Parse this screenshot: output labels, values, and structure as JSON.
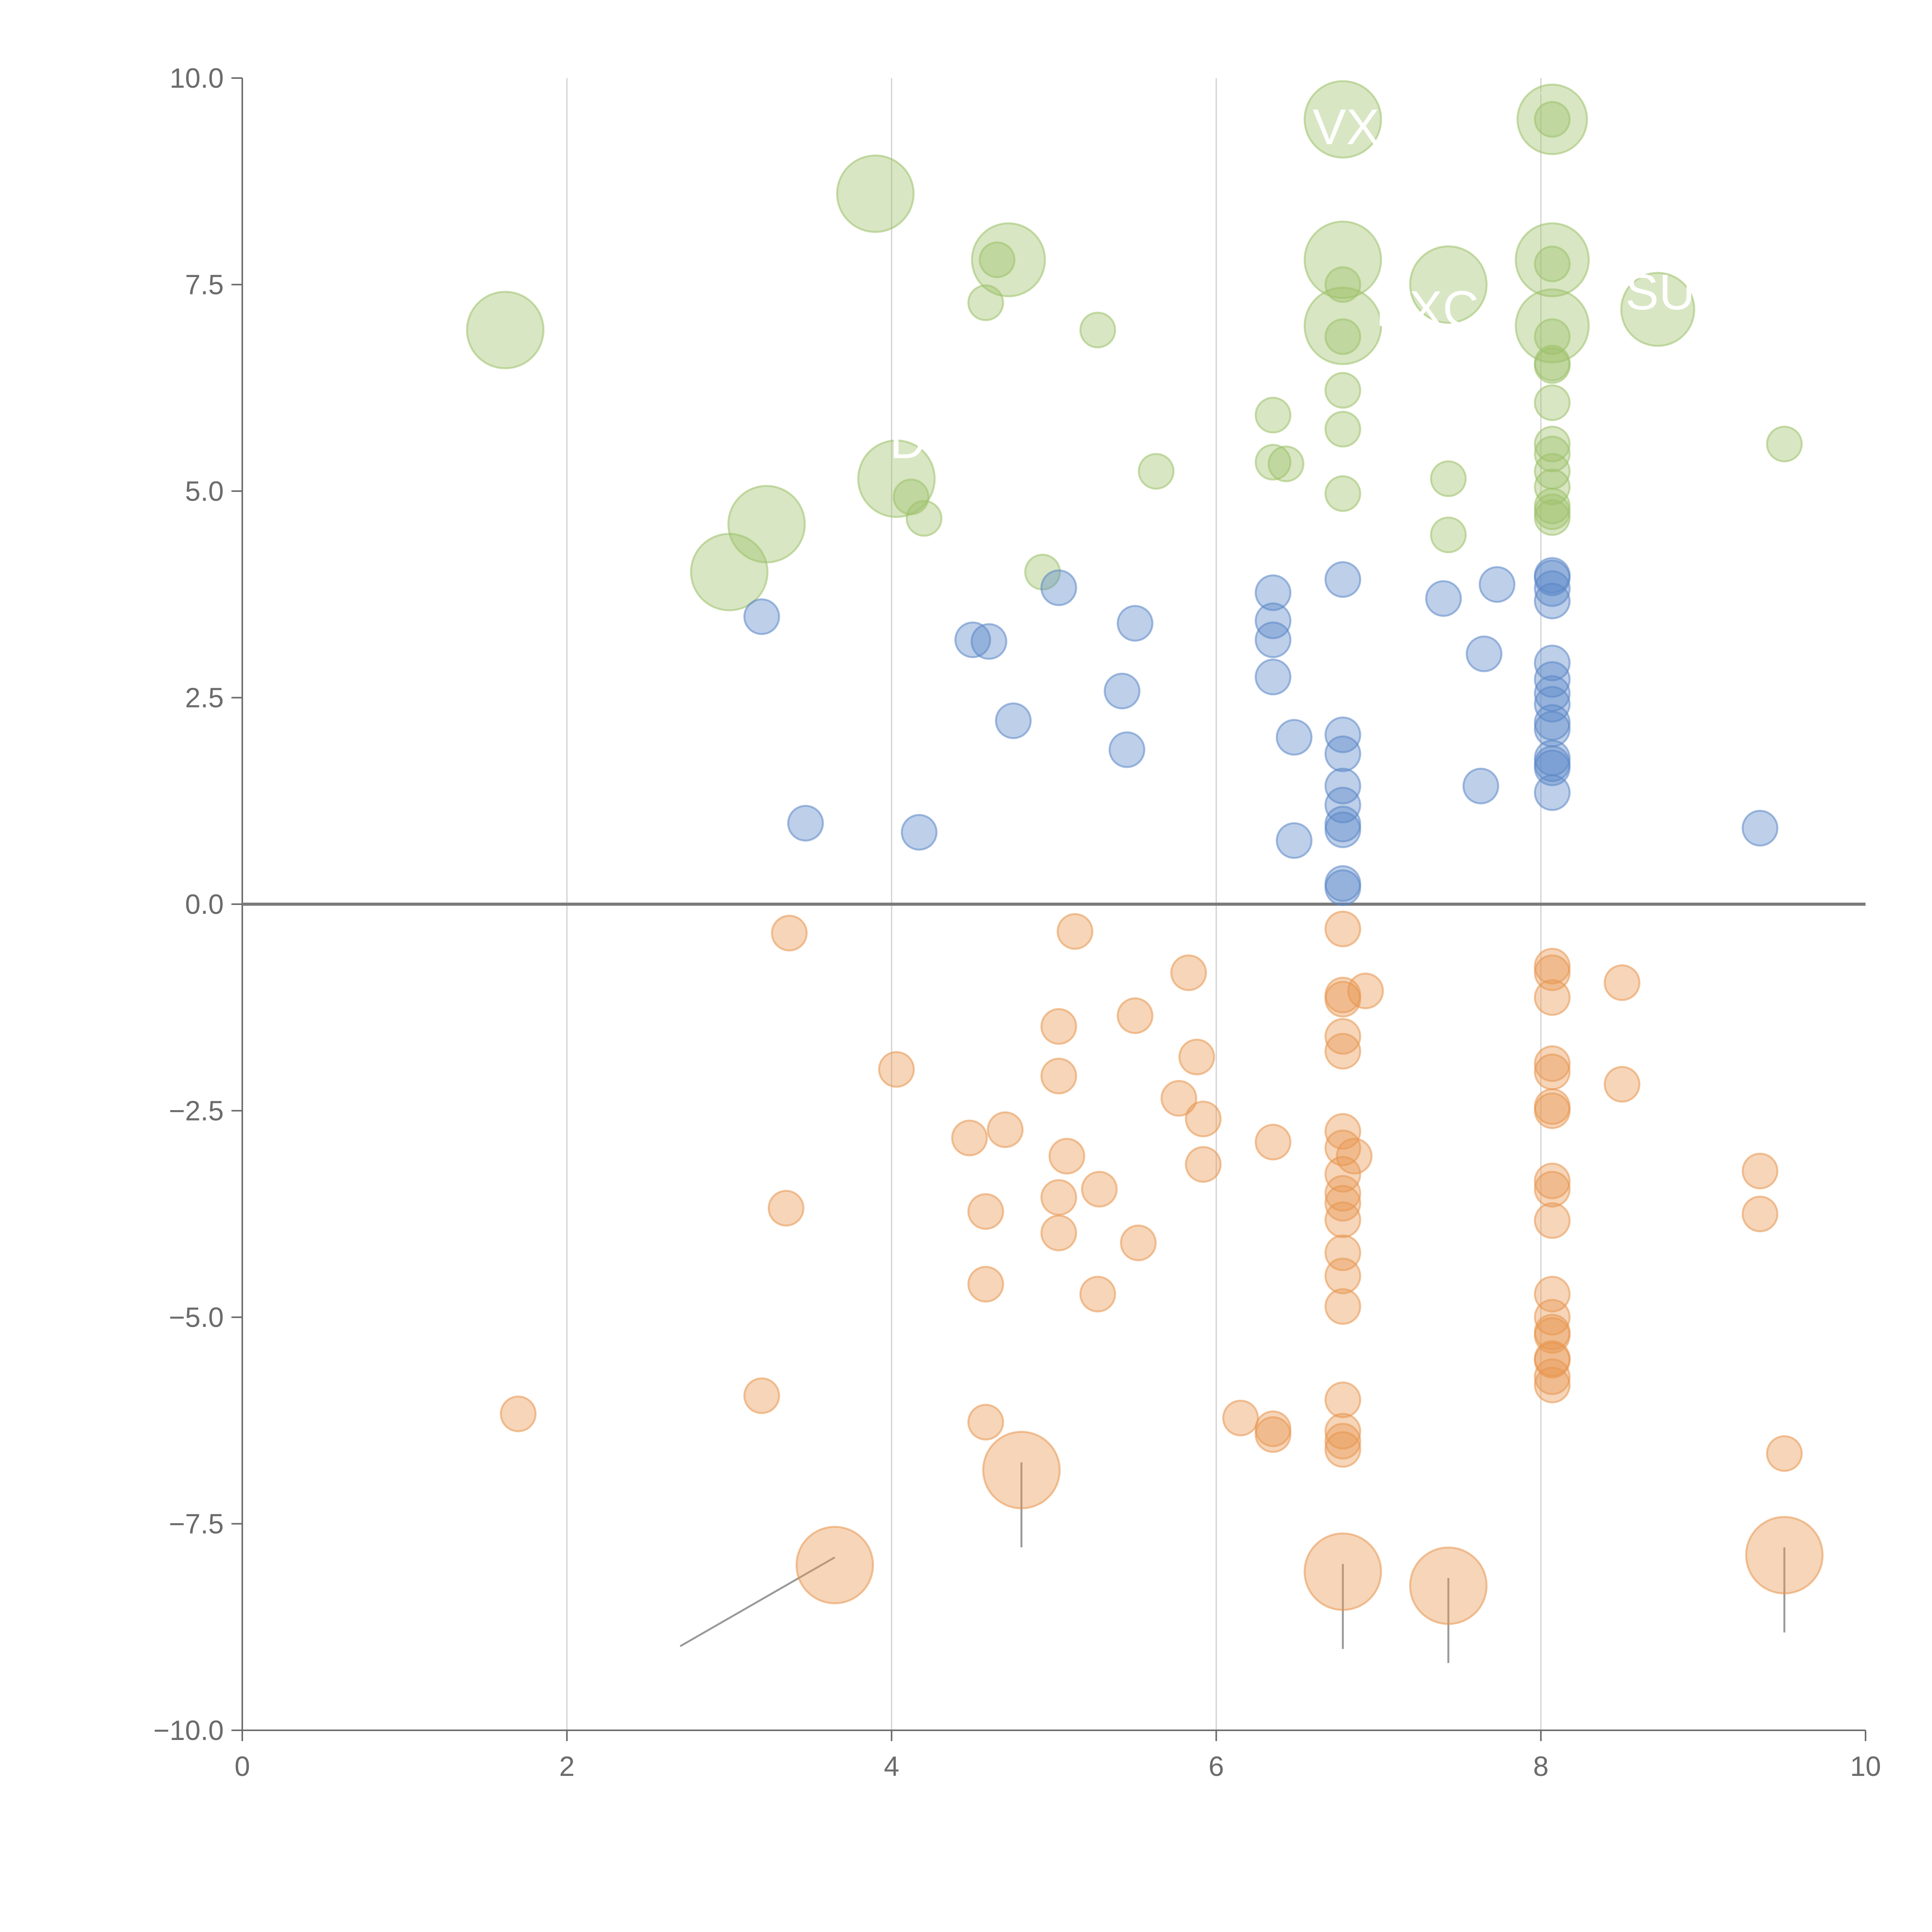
{
  "chart_data": {
    "type": "scatter",
    "title": "",
    "xlabel": "",
    "ylabel": "",
    "xlim": [
      0,
      10
    ],
    "ylim": [
      -10,
      10
    ],
    "x_ticks": [
      0,
      2,
      4,
      6,
      8,
      10
    ],
    "x_tick_labels": [
      "0",
      "2",
      "4",
      "6",
      "8",
      "10"
    ],
    "y_ticks": [
      10,
      7.5,
      5,
      2.5,
      0,
      -2.5,
      -5,
      -7.5,
      -10
    ],
    "y_tick_labels": [
      "10.0",
      "7.5",
      "5.0",
      "2.5",
      "0.0",
      "−2.5",
      "−5.0",
      "−7.5",
      "−10.0"
    ],
    "grid": {
      "vertical": true,
      "horizontal": false
    },
    "reference_line_y": 0,
    "colors": {
      "green": "#9dc16a",
      "blue": "#5b87c7",
      "orange": "#e8954f",
      "axis": "#6b6b6b",
      "grid": "#d0d0d0"
    },
    "series": [
      {
        "name": "green",
        "color": "#9dc16a",
        "points": [
          [
            6.78,
            9.5,
            2.2
          ],
          [
            8.07,
            9.5,
            2.0
          ],
          [
            8.07,
            9.5,
            1.0
          ],
          [
            3.9,
            8.6,
            2.2
          ],
          [
            4.72,
            7.8,
            2.1
          ],
          [
            4.65,
            7.8,
            1.0
          ],
          [
            6.78,
            7.8,
            2.2
          ],
          [
            8.07,
            7.8,
            2.1
          ],
          [
            8.07,
            7.75,
            1.0
          ],
          [
            6.78,
            7.5,
            1.0
          ],
          [
            7.43,
            7.5,
            2.2
          ],
          [
            4.58,
            7.28,
            1.0
          ],
          [
            8.72,
            7.2,
            2.1
          ],
          [
            1.62,
            6.95,
            2.2
          ],
          [
            5.27,
            6.95,
            1.0
          ],
          [
            6.78,
            7.0,
            2.2
          ],
          [
            8.07,
            7.0,
            2.1
          ],
          [
            6.78,
            6.87,
            1.0
          ],
          [
            8.07,
            6.87,
            1.0
          ],
          [
            8.07,
            6.55,
            1.0
          ],
          [
            8.07,
            6.52,
            1.0
          ],
          [
            6.78,
            6.22,
            1.0
          ],
          [
            8.07,
            6.07,
            1.0
          ],
          [
            6.35,
            5.92,
            1.0
          ],
          [
            6.78,
            5.75,
            1.0
          ],
          [
            9.5,
            5.57,
            1.0
          ],
          [
            8.07,
            5.57,
            1.0
          ],
          [
            8.07,
            5.45,
            1.0
          ],
          [
            6.35,
            5.35,
            1.0
          ],
          [
            6.43,
            5.33,
            1.0
          ],
          [
            5.63,
            5.24,
            1.0
          ],
          [
            8.07,
            5.24,
            1.0
          ],
          [
            8.07,
            5.05,
            1.0
          ],
          [
            7.43,
            5.15,
            1.0
          ],
          [
            4.03,
            5.15,
            2.2
          ],
          [
            4.12,
            4.93,
            1.0
          ],
          [
            6.78,
            4.97,
            1.0
          ],
          [
            8.07,
            4.82,
            1.0
          ],
          [
            8.07,
            4.75,
            1.0
          ],
          [
            8.07,
            4.68,
            1.0
          ],
          [
            4.2,
            4.67,
            1.0
          ],
          [
            3.23,
            4.6,
            2.2
          ],
          [
            7.43,
            4.47,
            1.0
          ],
          [
            4.93,
            4.02,
            1.0
          ],
          [
            3.0,
            4.02,
            2.2
          ]
        ]
      },
      {
        "name": "blue",
        "color": "#5b87c7",
        "points": [
          [
            6.78,
            3.93,
            1.0
          ],
          [
            7.73,
            3.87,
            1.0
          ],
          [
            8.07,
            3.98,
            1.0
          ],
          [
            8.07,
            3.95,
            1.0
          ],
          [
            8.07,
            3.82,
            1.0
          ],
          [
            5.03,
            3.83,
            1.0
          ],
          [
            6.35,
            3.77,
            1.0
          ],
          [
            7.4,
            3.7,
            1.0
          ],
          [
            8.07,
            3.67,
            1.0
          ],
          [
            3.2,
            3.48,
            1.0
          ],
          [
            6.35,
            3.43,
            1.0
          ],
          [
            5.5,
            3.4,
            1.0
          ],
          [
            4.5,
            3.2,
            1.0
          ],
          [
            4.6,
            3.18,
            1.0
          ],
          [
            6.35,
            3.2,
            1.0
          ],
          [
            7.65,
            3.03,
            1.0
          ],
          [
            8.07,
            2.92,
            1.0
          ],
          [
            8.07,
            2.72,
            1.0
          ],
          [
            6.35,
            2.75,
            1.0
          ],
          [
            8.07,
            2.55,
            1.0
          ],
          [
            5.42,
            2.58,
            1.0
          ],
          [
            8.07,
            2.42,
            1.0
          ],
          [
            4.75,
            2.22,
            1.0
          ],
          [
            8.07,
            2.2,
            1.0
          ],
          [
            8.07,
            2.12,
            1.0
          ],
          [
            6.78,
            2.05,
            1.0
          ],
          [
            6.48,
            2.02,
            1.0
          ],
          [
            5.45,
            1.87,
            1.0
          ],
          [
            6.78,
            1.82,
            1.0
          ],
          [
            8.07,
            1.77,
            1.0
          ],
          [
            8.07,
            1.7,
            1.0
          ],
          [
            8.07,
            1.65,
            1.0
          ],
          [
            7.63,
            1.43,
            1.0
          ],
          [
            6.78,
            1.43,
            1.0
          ],
          [
            8.07,
            1.35,
            1.0
          ],
          [
            6.78,
            1.2,
            1.0
          ],
          [
            3.47,
            0.98,
            1.0
          ],
          [
            6.78,
            0.97,
            1.0
          ],
          [
            6.78,
            0.9,
            1.0
          ],
          [
            9.35,
            0.92,
            1.0
          ],
          [
            4.17,
            0.87,
            1.0
          ],
          [
            6.48,
            0.77,
            1.0
          ],
          [
            6.78,
            0.25,
            1.0
          ],
          [
            6.78,
            0.2,
            1.0
          ]
        ]
      },
      {
        "name": "orange",
        "color": "#e8954f",
        "points": [
          [
            6.78,
            -0.3,
            1.0
          ],
          [
            5.13,
            -0.33,
            1.0
          ],
          [
            3.37,
            -0.35,
            1.0
          ],
          [
            8.07,
            -0.75,
            1.0
          ],
          [
            8.07,
            -0.83,
            1.0
          ],
          [
            5.83,
            -0.83,
            1.0
          ],
          [
            8.5,
            -0.95,
            1.0
          ],
          [
            6.92,
            -1.05,
            1.0
          ],
          [
            6.78,
            -1.1,
            1.0
          ],
          [
            8.07,
            -1.13,
            1.0
          ],
          [
            6.78,
            -1.15,
            1.0
          ],
          [
            5.5,
            -1.35,
            1.0
          ],
          [
            5.03,
            -1.48,
            1.0
          ],
          [
            6.78,
            -1.6,
            1.0
          ],
          [
            6.78,
            -1.78,
            1.0
          ],
          [
            5.88,
            -1.85,
            1.0
          ],
          [
            8.07,
            -1.93,
            1.0
          ],
          [
            8.07,
            -2.03,
            1.0
          ],
          [
            4.03,
            -2.0,
            1.0
          ],
          [
            5.03,
            -2.08,
            1.0
          ],
          [
            8.5,
            -2.18,
            1.0
          ],
          [
            5.77,
            -2.35,
            1.0
          ],
          [
            8.07,
            -2.45,
            1.0
          ],
          [
            8.07,
            -2.5,
            1.0
          ],
          [
            5.92,
            -2.6,
            1.0
          ],
          [
            4.7,
            -2.73,
            1.0
          ],
          [
            6.78,
            -2.75,
            1.0
          ],
          [
            4.48,
            -2.83,
            1.0
          ],
          [
            6.35,
            -2.88,
            1.0
          ],
          [
            6.78,
            -2.95,
            1.0
          ],
          [
            5.08,
            -3.05,
            1.0
          ],
          [
            6.85,
            -3.05,
            1.0
          ],
          [
            5.92,
            -3.15,
            1.0
          ],
          [
            9.35,
            -3.23,
            1.0
          ],
          [
            6.78,
            -3.27,
            1.0
          ],
          [
            8.07,
            -3.35,
            1.0
          ],
          [
            5.28,
            -3.45,
            1.0
          ],
          [
            8.07,
            -3.45,
            1.0
          ],
          [
            6.78,
            -3.5,
            1.0
          ],
          [
            5.03,
            -3.55,
            1.0
          ],
          [
            6.78,
            -3.62,
            1.0
          ],
          [
            3.35,
            -3.68,
            1.0
          ],
          [
            4.58,
            -3.72,
            1.0
          ],
          [
            9.35,
            -3.75,
            1.0
          ],
          [
            6.78,
            -3.82,
            1.0
          ],
          [
            8.07,
            -3.83,
            1.0
          ],
          [
            5.03,
            -3.98,
            1.0
          ],
          [
            5.52,
            -4.1,
            1.0
          ],
          [
            6.78,
            -4.22,
            1.0
          ],
          [
            6.78,
            -4.5,
            1.0
          ],
          [
            4.58,
            -4.6,
            1.0
          ],
          [
            5.27,
            -4.72,
            1.0
          ],
          [
            8.07,
            -4.72,
            1.0
          ],
          [
            6.78,
            -4.87,
            1.0
          ],
          [
            8.07,
            -5.0,
            1.0
          ],
          [
            8.07,
            -5.18,
            1.0
          ],
          [
            8.07,
            -5.22,
            1.0
          ],
          [
            8.07,
            -5.5,
            1.0
          ],
          [
            8.07,
            -5.52,
            1.0
          ],
          [
            8.07,
            -5.72,
            1.0
          ],
          [
            8.07,
            -5.82,
            1.0
          ],
          [
            3.2,
            -5.95,
            1.0
          ],
          [
            6.78,
            -6.0,
            1.0
          ],
          [
            1.7,
            -6.17,
            1.0
          ],
          [
            6.15,
            -6.22,
            1.0
          ],
          [
            4.58,
            -6.27,
            1.0
          ],
          [
            6.35,
            -6.35,
            1.0
          ],
          [
            6.35,
            -6.42,
            1.0
          ],
          [
            6.78,
            -6.38,
            1.0
          ],
          [
            6.78,
            -6.5,
            1.0
          ],
          [
            6.78,
            -6.6,
            1.0
          ],
          [
            9.5,
            -6.65,
            1.0
          ],
          [
            4.8,
            -6.85,
            2.2
          ],
          [
            9.5,
            -7.88,
            2.2
          ],
          [
            3.65,
            -8.0,
            2.2
          ],
          [
            6.78,
            -8.08,
            2.2
          ],
          [
            7.43,
            -8.25,
            2.2
          ]
        ]
      }
    ],
    "annotations": [
      {
        "text": "VX",
        "x": 6.8,
        "y": 9.2
      },
      {
        "text": "PXC",
        "x": 7.3,
        "y": 7.0
      },
      {
        "text": "SUSH",
        "x": 8.95,
        "y": 7.2
      },
      {
        "text": "D",
        "x": 4.1,
        "y": 5.4
      }
    ]
  }
}
